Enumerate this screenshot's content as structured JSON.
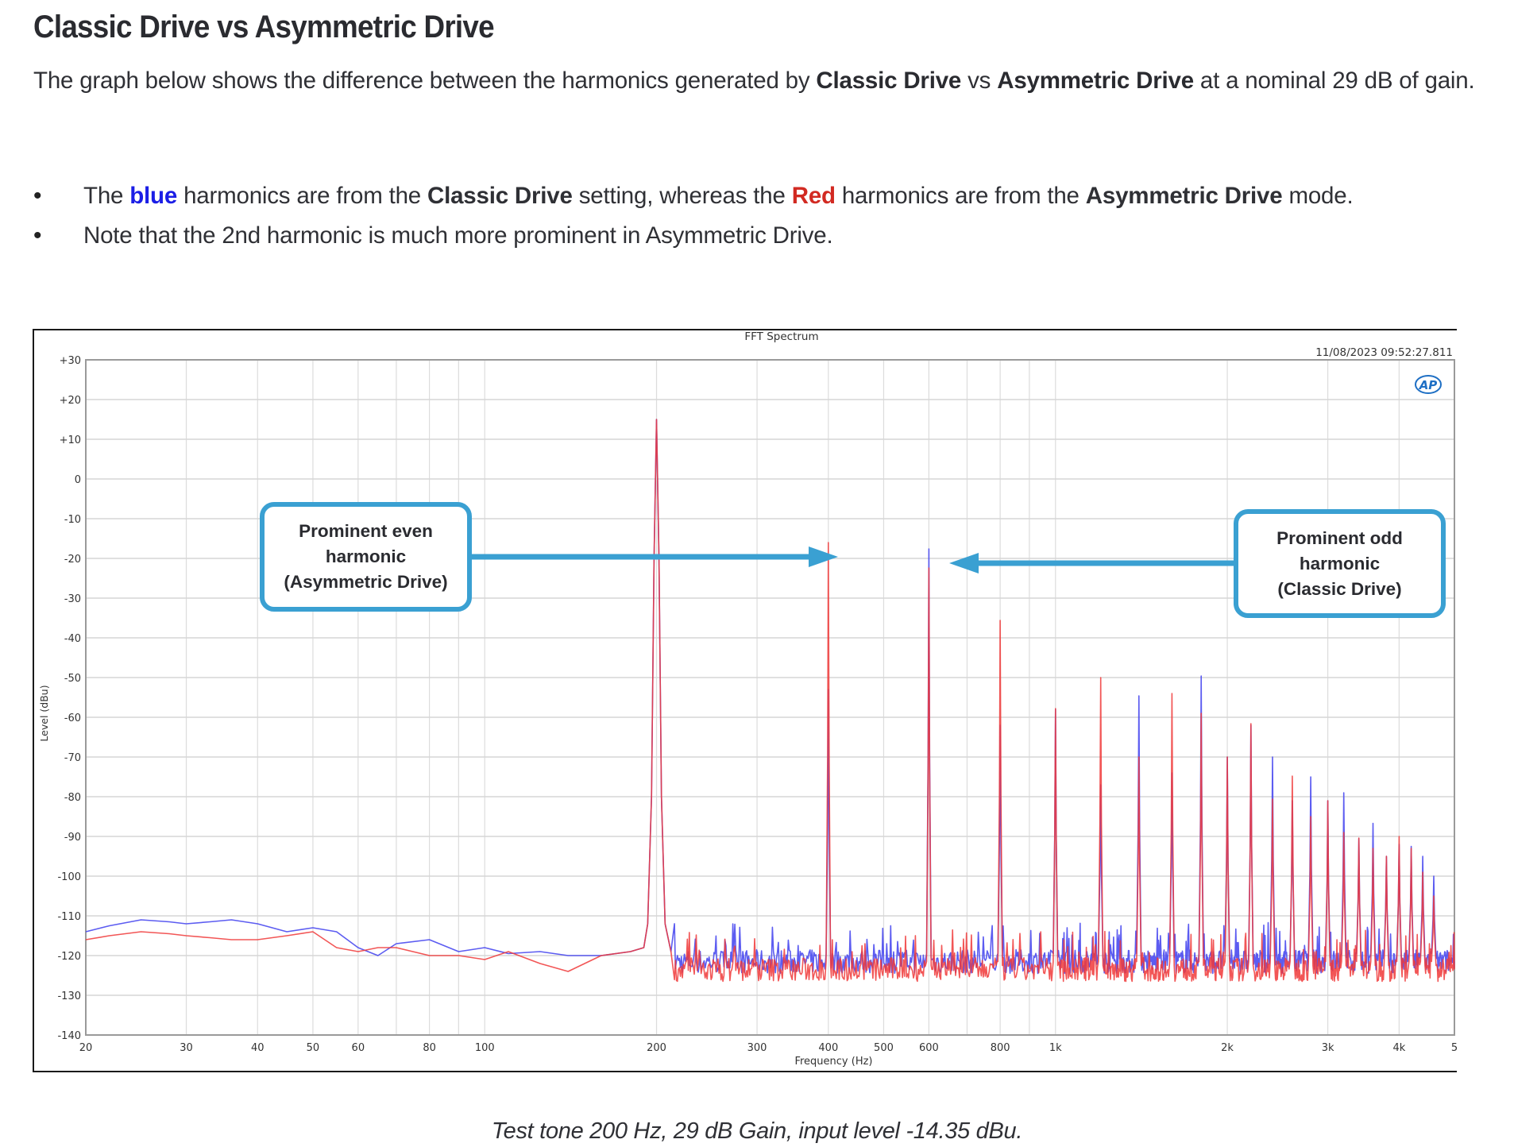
{
  "heading": "Classic Drive vs Asymmetric Drive",
  "intro": {
    "pre": "The graph below shows the difference between the harmonics generated by ",
    "term1": "Classic Drive",
    "mid": " vs ",
    "term2": "Asymmetric Drive",
    "post": " at a nominal 29 dB of gain."
  },
  "bullets": [
    {
      "p1": "The ",
      "color_word_1": "blue",
      "p2": " harmonics are from the ",
      "bold_1": "Classic Drive",
      "p3": " setting, whereas the ",
      "color_word_2": "Red",
      "p4": " harmonics are from the ",
      "bold_2": "Asymmetric Drive",
      "p5": " mode."
    },
    {
      "text": "Note that the 2nd harmonic is much more prominent in Asymmetric Drive."
    }
  ],
  "callouts": {
    "left": {
      "line1": "Prominent even",
      "line2": "harmonic",
      "line3": "(Asymmetric Drive)"
    },
    "right": {
      "line1": "Prominent odd",
      "line2": "harmonic",
      "line3": "(Classic Drive)"
    }
  },
  "caption": "Test tone 200 Hz, 29 dB Gain, input level -14.35 dBu.",
  "colors": {
    "classic_blue": "#4a4af0",
    "asymmetric_red": "#f03838",
    "callout_border": "#3aa0d2",
    "grid": "#d8d8d8"
  },
  "chart_data": {
    "type": "line",
    "title": "FFT Spectrum",
    "timestamp": "11/08/2023 09:52:27.811",
    "logo": "AP",
    "xlabel": "Frequency (Hz)",
    "ylabel": "Level (dBu)",
    "xscale": "log",
    "xlim": [
      20,
      5000
    ],
    "ylim": [
      -140,
      30
    ],
    "grid": true,
    "xticks": [
      "20",
      "30",
      "40",
      "50",
      "60",
      "80",
      "100",
      "200",
      "300",
      "400",
      "500",
      "600",
      "800",
      "1k",
      "2k",
      "3k",
      "4k",
      "5"
    ],
    "xtick_values": [
      20,
      30,
      40,
      50,
      60,
      80,
      100,
      200,
      300,
      400,
      500,
      600,
      800,
      1000,
      2000,
      3000,
      4000,
      5000
    ],
    "yticks": [
      "+30",
      "+20",
      "+10",
      "0",
      "-10",
      "-20",
      "-30",
      "-40",
      "-50",
      "-60",
      "-70",
      "-80",
      "-90",
      "-100",
      "-110",
      "-120",
      "-130",
      "-140"
    ],
    "ytick_values": [
      30,
      20,
      10,
      0,
      -10,
      -20,
      -30,
      -40,
      -50,
      -60,
      -70,
      -80,
      -90,
      -100,
      -110,
      -120,
      -130,
      -140
    ],
    "fundamental_hz": 200,
    "series": [
      {
        "name": "Classic Drive (blue)",
        "color": "#4a4af0",
        "harmonics_hz": [
          200,
          400,
          600,
          800,
          1000,
          1200,
          1400,
          1600,
          1800,
          2000,
          2200,
          2400,
          2600,
          2800,
          3000,
          3200,
          3400,
          3600,
          3800,
          4000,
          4200,
          4400,
          4600
        ],
        "harmonics_dbu": [
          15,
          -53,
          -17.6,
          -62,
          -58,
          -77,
          -54.6,
          -74,
          -49.6,
          -70,
          -62,
          -70,
          -81,
          -75,
          -81,
          -79,
          -90.5,
          -86.7,
          -95,
          -92,
          -92.5,
          -95,
          -100
        ],
        "noise_floor": {
          "x": [
            20,
            22,
            25,
            28,
            30,
            33,
            36,
            40,
            45,
            50,
            55,
            60,
            65,
            70,
            80,
            90,
            100,
            110,
            125,
            140,
            160,
            180,
            190
          ],
          "y": [
            -114,
            -112.5,
            -111,
            -111.5,
            -112,
            -111.5,
            -111,
            -112,
            -114,
            -113,
            -114,
            -118,
            -120,
            -117,
            -116,
            -119,
            -118,
            -119.5,
            -119,
            -120,
            -120,
            -119,
            -118
          ]
        }
      },
      {
        "name": "Asymmetric Drive (red)",
        "color": "#f03838",
        "harmonics_hz": [
          200,
          400,
          600,
          800,
          1000,
          1200,
          1400,
          1600,
          1800,
          2000,
          2200,
          2400,
          2600,
          2800,
          3000,
          3200,
          3400,
          3600,
          3800,
          4000,
          4200,
          4400,
          4600
        ],
        "harmonics_dbu": [
          15,
          -16,
          -22.4,
          -35.6,
          -57.8,
          -50,
          -70,
          -54,
          -59,
          -70,
          -61.6,
          -80.6,
          -74.8,
          -85,
          -81,
          -89,
          -90.4,
          -93,
          -95,
          -90,
          -93,
          -99,
          -105
        ],
        "noise_floor": {
          "x": [
            20,
            22,
            25,
            28,
            30,
            33,
            36,
            40,
            45,
            50,
            55,
            60,
            65,
            70,
            80,
            90,
            100,
            110,
            125,
            140,
            160,
            180,
            190
          ],
          "y": [
            -116,
            -115,
            -114,
            -114.5,
            -115,
            -115.5,
            -116,
            -116,
            -115,
            -114,
            -118,
            -119,
            -118,
            -118,
            -120,
            -120,
            -121,
            -119,
            -122,
            -124,
            -120,
            -119,
            -118
          ]
        }
      }
    ],
    "noise_floor_above_200hz_dbu": -123
  }
}
